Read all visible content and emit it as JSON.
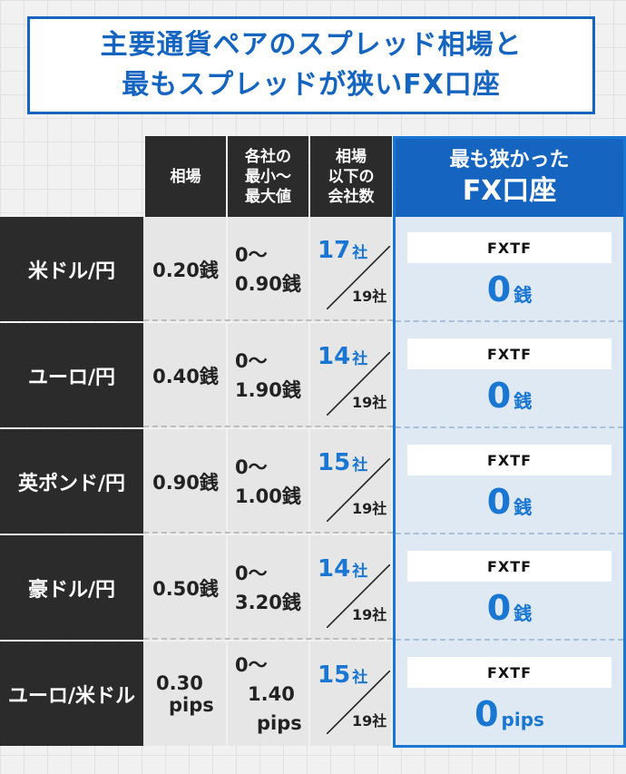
{
  "title": {
    "line1": "主要通貨ペアのスプレッド相場と",
    "line2": "最もスプレッドが狭いFX口座"
  },
  "headers": {
    "rate": "相場",
    "range": "各社の\n最小〜\n最大値",
    "count": "相場\n以下の\n会社数",
    "best_line1": "最も狭かった",
    "best_line2": "FX口座"
  },
  "rows": [
    {
      "pair": "米ドル/円",
      "rate": "0.20銭",
      "rate_line2": "",
      "min": "0〜",
      "max": "0.90銭",
      "max_line2": "",
      "count": "17",
      "count_unit": "社",
      "total": "19社",
      "broker": "FXTF",
      "best_value": "0",
      "best_unit": "銭"
    },
    {
      "pair": "ユーロ/円",
      "rate": "0.40銭",
      "rate_line2": "",
      "min": "0〜",
      "max": "1.90銭",
      "max_line2": "",
      "count": "14",
      "count_unit": "社",
      "total": "19社",
      "broker": "FXTF",
      "best_value": "0",
      "best_unit": "銭"
    },
    {
      "pair": "英ポンド/円",
      "rate": "0.90銭",
      "rate_line2": "",
      "min": "0〜",
      "max": "1.00銭",
      "max_line2": "",
      "count": "15",
      "count_unit": "社",
      "total": "19社",
      "broker": "FXTF",
      "best_value": "0",
      "best_unit": "銭"
    },
    {
      "pair": "豪ドル/円",
      "rate": "0.50銭",
      "rate_line2": "",
      "min": "0〜",
      "max": "3.20銭",
      "max_line2": "",
      "count": "14",
      "count_unit": "社",
      "total": "19社",
      "broker": "FXTF",
      "best_value": "0",
      "best_unit": "銭"
    },
    {
      "pair": "ユーロ/米ドル",
      "rate": "0.30",
      "rate_line2": "pips",
      "min": "0〜",
      "max": "1.40",
      "max_line2": "pips",
      "count": "15",
      "count_unit": "社",
      "total": "19社",
      "broker": "FXTF",
      "best_value": "0",
      "best_unit": "pips"
    }
  ]
}
